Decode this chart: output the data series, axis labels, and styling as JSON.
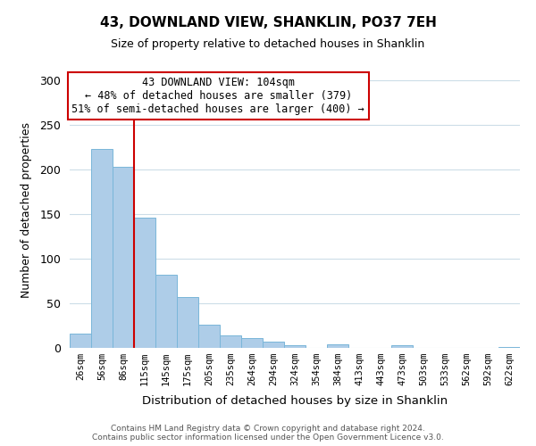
{
  "title": "43, DOWNLAND VIEW, SHANKLIN, PO37 7EH",
  "subtitle": "Size of property relative to detached houses in Shanklin",
  "xlabel": "Distribution of detached houses by size in Shanklin",
  "ylabel": "Number of detached properties",
  "bar_labels": [
    "26sqm",
    "56sqm",
    "86sqm",
    "115sqm",
    "145sqm",
    "175sqm",
    "205sqm",
    "235sqm",
    "264sqm",
    "294sqm",
    "324sqm",
    "354sqm",
    "384sqm",
    "413sqm",
    "443sqm",
    "473sqm",
    "503sqm",
    "533sqm",
    "562sqm",
    "592sqm",
    "622sqm"
  ],
  "bar_values": [
    16,
    223,
    203,
    146,
    82,
    57,
    26,
    14,
    11,
    7,
    3,
    0,
    4,
    0,
    0,
    3,
    0,
    0,
    0,
    0,
    1
  ],
  "bar_color": "#aecde8",
  "bar_edge_color": "#7ab6d9",
  "marker_line_color": "#cc0000",
  "annotation_text": "43 DOWNLAND VIEW: 104sqm\n← 48% of detached houses are smaller (379)\n51% of semi-detached houses are larger (400) →",
  "annotation_box_edge_color": "#cc0000",
  "ylim": [
    0,
    310
  ],
  "yticks": [
    0,
    50,
    100,
    150,
    200,
    250,
    300
  ],
  "footer_line1": "Contains HM Land Registry data © Crown copyright and database right 2024.",
  "footer_line2": "Contains public sector information licensed under the Open Government Licence v3.0.",
  "bg_color": "#ffffff",
  "grid_color": "#ccdde8"
}
